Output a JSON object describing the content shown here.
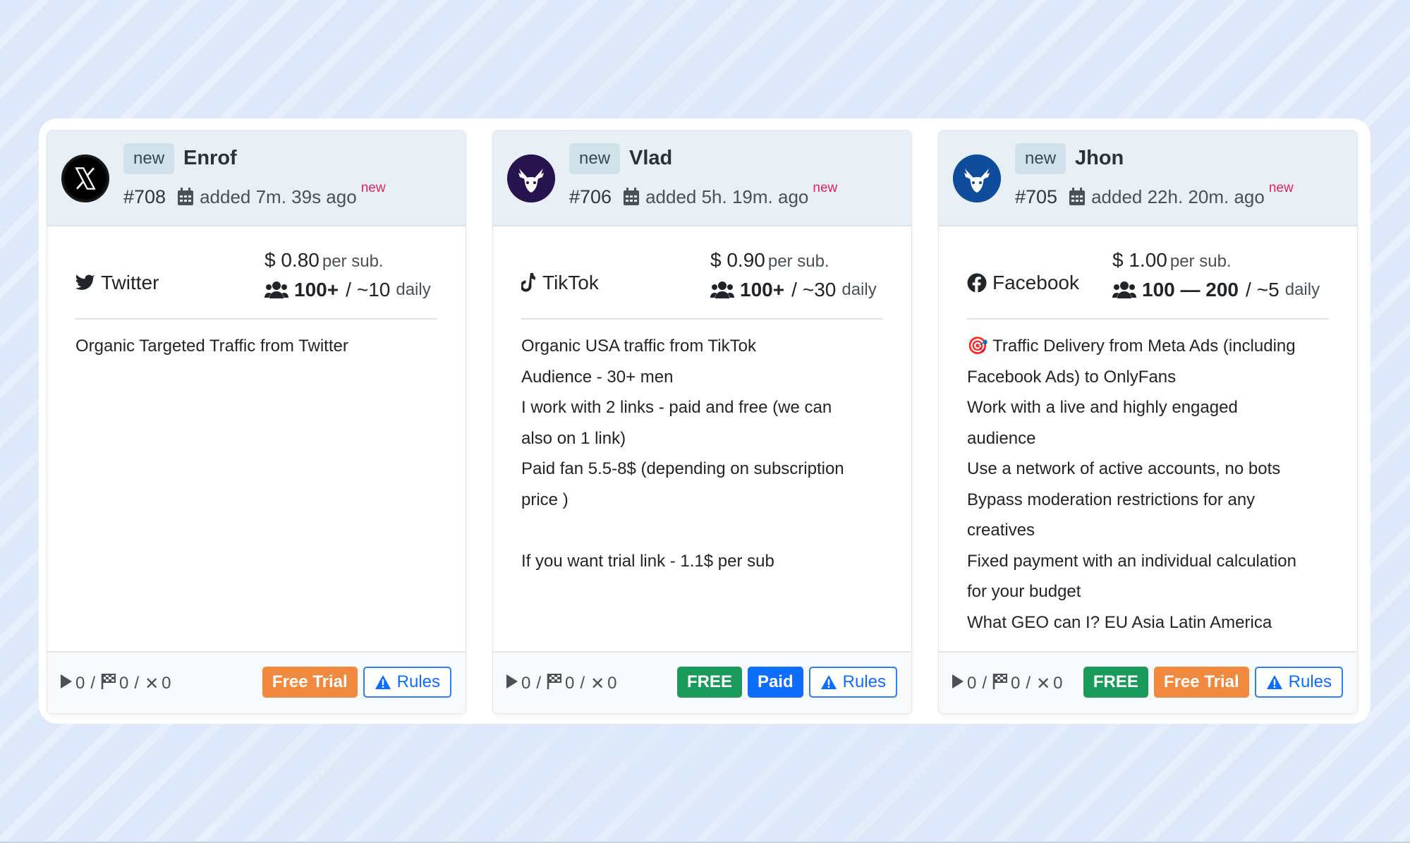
{
  "colors": {
    "free_trial": "#f0883e",
    "free": "#1a9a5b",
    "paid": "#0d6efd",
    "rules": "#0d6efd",
    "new_sup": "#e0245e",
    "header_bg": "#e9f0f5"
  },
  "cards": [
    {
      "new_badge": "new",
      "author": "Enrof",
      "avatar_icon": "x-logo-icon",
      "order_id": "#708",
      "added": "added 7m. 39s ago",
      "new_tag": "new",
      "platform_icon": "twitter-bird-icon",
      "platform": "Twitter",
      "price_symbol": "$",
      "price": "0.80",
      "price_unit": "per sub.",
      "subs_range": "100+",
      "slash": "/",
      "daily_count": "~10",
      "daily_label": "daily",
      "description": [
        "Organic Targeted Traffic from Twitter"
      ],
      "stats": {
        "started": "0",
        "finished": "0",
        "cancelled": "0",
        "slash": "/"
      },
      "buttons": {
        "free_trial": "Free Trial",
        "rules": "Rules"
      }
    },
    {
      "new_badge": "new",
      "author": "Vlad",
      "avatar_icon": "moose-logo-icon",
      "order_id": "#706",
      "added": "added 5h. 19m. ago",
      "new_tag": "new",
      "platform_icon": "tiktok-icon",
      "platform": "TikTok",
      "price_symbol": "$",
      "price": "0.90",
      "price_unit": "per sub.",
      "subs_range": "100+",
      "slash": "/",
      "daily_count": "~30",
      "daily_label": "daily",
      "description": [
        "Organic USA traffic from TikTok",
        "Audience - 30+ men",
        "I work with 2 links - paid and free (we can",
        "also on 1 link)",
        "Paid fan 5.5-8$ (depending on subscription",
        "price )",
        "",
        "If you want trial link - 1.1$ per sub"
      ],
      "stats": {
        "started": "0",
        "finished": "0",
        "cancelled": "0",
        "slash": "/"
      },
      "buttons": {
        "free": "FREE",
        "paid": "Paid",
        "rules": "Rules"
      }
    },
    {
      "new_badge": "new",
      "author": "Jhon",
      "avatar_icon": "moose-logo-icon",
      "order_id": "#705",
      "added": "added 22h. 20m. ago",
      "new_tag": "new",
      "platform_icon": "facebook-icon",
      "platform": "Facebook",
      "price_symbol": "$",
      "price": "1.00",
      "price_unit": "per sub.",
      "subs_range": "100 — 200",
      "slash": "/",
      "daily_count": "~5",
      "daily_label": "daily",
      "description": [
        "🎯 Traffic Delivery from Meta Ads (including",
        "Facebook Ads) to OnlyFans",
        "Work with a live and highly engaged",
        "audience",
        "Use a network of active accounts, no bots",
        "Bypass moderation restrictions for any",
        "creatives",
        "Fixed payment with an individual calculation",
        "for your budget",
        "What GEO can I? EU Asia Latin America"
      ],
      "stats": {
        "started": "0",
        "finished": "0",
        "cancelled": "0",
        "slash": "/"
      },
      "buttons": {
        "free": "FREE",
        "free_trial": "Free Trial",
        "rules": "Rules"
      }
    }
  ]
}
